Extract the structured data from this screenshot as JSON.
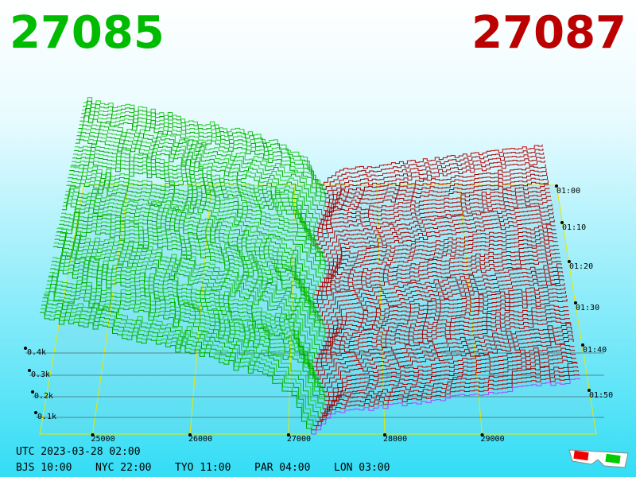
{
  "header": {
    "bid": "27085",
    "ask": "27087"
  },
  "price_axis": [
    "25000",
    "26000",
    "27000",
    "28000",
    "29000"
  ],
  "time_axis": [
    "01:00",
    "01:10",
    "01:20",
    "01:30",
    "01:40",
    "01:50"
  ],
  "volume_axis": [
    "0.4k",
    "0.3k",
    "0.2k",
    "0.1k"
  ],
  "footer": {
    "utc": "UTC 2023-03-28 02:00",
    "zones": [
      "BJS 10:00",
      "NYC 22:00",
      "TYO 11:00",
      "PAR 04:00",
      "LON 03:00"
    ]
  }
}
